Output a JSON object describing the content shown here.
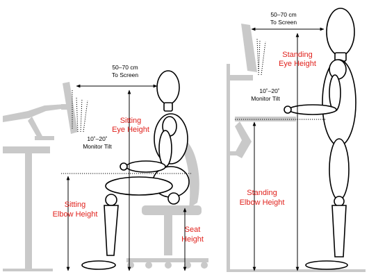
{
  "labels": {
    "sit_distance_line1": "50–70 cm",
    "sit_distance_line2": "To Screen",
    "sit_eye_line1": "Sitting",
    "sit_eye_line2": "Eye Height",
    "sit_tilt_line1": "10˚–20˚",
    "sit_tilt_line2": "Monitor Tilt",
    "sit_elbow_line1": "Sitting",
    "sit_elbow_line2": "Elbow Height",
    "seat_line1": "Seat",
    "seat_line2": "Height",
    "stand_distance_line1": "50–70 cm",
    "stand_distance_line2": "To Screen",
    "stand_eye_line1": "Standing",
    "stand_eye_line2": "Eye Height",
    "stand_tilt_line1": "10˚–20˚",
    "stand_tilt_line2": "Monitor Tilt",
    "stand_elbow_line1": "Standing",
    "stand_elbow_line2": "Elbow Height"
  },
  "colors": {
    "highlight_text": "#e0201b",
    "furniture": "#c9c9c9",
    "outline": "#000000"
  }
}
